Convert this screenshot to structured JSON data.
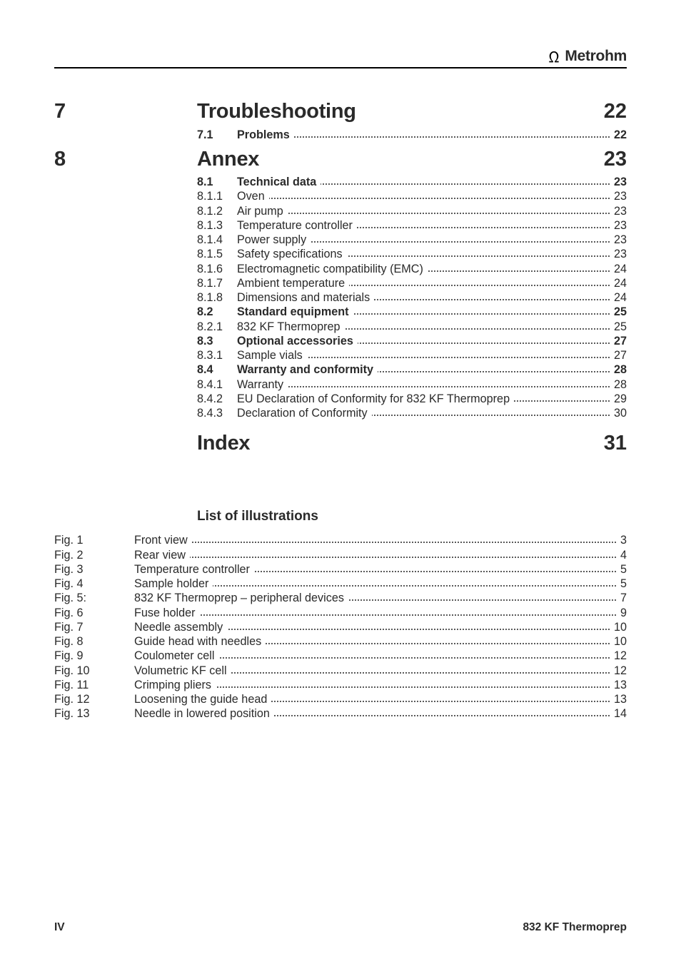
{
  "brand": "Metrohm",
  "chapters": [
    {
      "num": "7",
      "title": "Troubleshooting",
      "page": "22",
      "rows": [
        {
          "lbl": "7.1",
          "txt": "Problems",
          "pg": "22",
          "bold": true
        }
      ]
    },
    {
      "num": "8",
      "title": "Annex",
      "page": "23",
      "rows": [
        {
          "lbl": "8.1",
          "txt": "Technical data",
          "pg": "23",
          "bold": true
        },
        {
          "lbl": "8.1.1",
          "txt": "Oven",
          "pg": "23"
        },
        {
          "lbl": "8.1.2",
          "txt": "Air pump",
          "pg": "23"
        },
        {
          "lbl": "8.1.3",
          "txt": "Temperature controller",
          "pg": "23"
        },
        {
          "lbl": "8.1.4",
          "txt": "Power supply",
          "pg": "23"
        },
        {
          "lbl": "8.1.5",
          "txt": "Safety specifications",
          "pg": "23"
        },
        {
          "lbl": "8.1.6",
          "txt": "Electromagnetic compatibility (EMC)",
          "pg": "24"
        },
        {
          "lbl": "8.1.7",
          "txt": "Ambient temperature",
          "pg": "24"
        },
        {
          "lbl": "8.1.8",
          "txt": "Dimensions and materials",
          "pg": "24"
        },
        {
          "lbl": "8.2",
          "txt": "Standard equipment",
          "pg": "25",
          "bold": true
        },
        {
          "lbl": "8.2.1",
          "txt": "832 KF Thermoprep",
          "pg": "25"
        },
        {
          "lbl": "8.3",
          "txt": "Optional accessories",
          "pg": "27",
          "bold": true
        },
        {
          "lbl": "8.3.1",
          "txt": "Sample vials",
          "pg": "27"
        },
        {
          "lbl": "8.4",
          "txt": "Warranty and conformity",
          "pg": "28",
          "bold": true
        },
        {
          "lbl": "8.4.1",
          "txt": "Warranty",
          "pg": "28"
        },
        {
          "lbl": "8.4.2",
          "txt": "EU Declaration of Conformity for 832 KF Thermoprep",
          "pg": "29"
        },
        {
          "lbl": "8.4.3",
          "txt": "Declaration of Conformity",
          "pg": "30"
        }
      ]
    }
  ],
  "index": {
    "title": "Index",
    "page": "31"
  },
  "illus_title": "List of illustrations",
  "illus": [
    {
      "lbl": "Fig. 1",
      "txt": "Front view",
      "pg": "3"
    },
    {
      "lbl": "Fig. 2",
      "txt": "Rear view",
      "pg": "4"
    },
    {
      "lbl": "Fig. 3",
      "txt": "Temperature controller",
      "pg": "5"
    },
    {
      "lbl": "Fig. 4",
      "txt": "Sample holder",
      "pg": "5"
    },
    {
      "lbl": "Fig. 5:",
      "txt": "832 KF Thermoprep – peripheral devices",
      "pg": "7"
    },
    {
      "lbl": "Fig. 6",
      "txt": "Fuse holder",
      "pg": "9"
    },
    {
      "lbl": "Fig. 7",
      "txt": "Needle assembly",
      "pg": "10"
    },
    {
      "lbl": "Fig. 8",
      "txt": "Guide head with needles",
      "pg": "10"
    },
    {
      "lbl": "Fig. 9",
      "txt": "Coulometer cell",
      "pg": "12"
    },
    {
      "lbl": "Fig. 10",
      "txt": "Volumetric KF cell",
      "pg": "12"
    },
    {
      "lbl": "Fig. 11",
      "txt": "Crimping pliers",
      "pg": "13"
    },
    {
      "lbl": "Fig. 12",
      "txt": "Loosening the guide head",
      "pg": "13"
    },
    {
      "lbl": "Fig. 13",
      "txt": "Needle in lowered position",
      "pg": "14"
    }
  ],
  "footer_left": "IV",
  "footer_right": "832 KF Thermoprep"
}
